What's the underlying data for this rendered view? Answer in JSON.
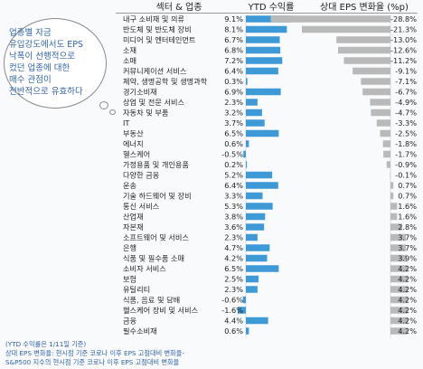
{
  "chart_data": {
    "type": "bar",
    "headers": {
      "sector": "섹터 & 업종",
      "ytd": "YTD 수익률",
      "eps": "상대 EPS 변화율 (%p)"
    },
    "rows": [
      {
        "name": "내구 소비재 및 의류",
        "ytd": 9.1,
        "ytd_label": "9.1%",
        "eps": -28.8,
        "eps_label": "-28.8%"
      },
      {
        "name": "반도체 및 반도체 장비",
        "ytd": 8.1,
        "ytd_label": "8.1%",
        "eps": -21.3,
        "eps_label": "-21.3%"
      },
      {
        "name": "미디어 및 엔터테인먼트",
        "ytd": 6.7,
        "ytd_label": "6.7%",
        "eps": -13.0,
        "eps_label": "-13.0%"
      },
      {
        "name": "소재",
        "ytd": 6.8,
        "ytd_label": "6.8%",
        "eps": -12.6,
        "eps_label": "-12.6%"
      },
      {
        "name": "소매",
        "ytd": 7.2,
        "ytd_label": "7.2%",
        "eps": -11.2,
        "eps_label": "-11.2%"
      },
      {
        "name": "커뮤니케이션 서비스",
        "ytd": 6.4,
        "ytd_label": "6.4%",
        "eps": -9.1,
        "eps_label": "-9.1%"
      },
      {
        "name": "제약, 생명공학 및 생명과학",
        "ytd": 0.3,
        "ytd_label": "0.3%",
        "eps": -7.1,
        "eps_label": "-7.1%"
      },
      {
        "name": "경기소비재",
        "ytd": 6.9,
        "ytd_label": "6.9%",
        "eps": -6.7,
        "eps_label": "-6.7%"
      },
      {
        "name": "상업 및 전문 서비스",
        "ytd": 2.3,
        "ytd_label": "2.3%",
        "eps": -4.9,
        "eps_label": "-4.9%"
      },
      {
        "name": "자동차 및 부품",
        "ytd": 3.2,
        "ytd_label": "3.2%",
        "eps": -4.7,
        "eps_label": "-4.7%"
      },
      {
        "name": "IT",
        "ytd": 3.7,
        "ytd_label": "3.7%",
        "eps": -3.3,
        "eps_label": "-3.3%"
      },
      {
        "name": "부동산",
        "ytd": 6.5,
        "ytd_label": "6.5%",
        "eps": -2.5,
        "eps_label": "-2.5%"
      },
      {
        "name": "에너지",
        "ytd": 0.6,
        "ytd_label": "0.6%",
        "eps": -1.8,
        "eps_label": "-1.8%"
      },
      {
        "name": "헬스케어",
        "ytd": -0.5,
        "ytd_label": "-0.5%",
        "eps": -1.7,
        "eps_label": "-1.7%"
      },
      {
        "name": "가정용품 및 개인용품",
        "ytd": 0.2,
        "ytd_label": "0.2%",
        "eps": -0.9,
        "eps_label": "-0.9%"
      },
      {
        "name": "다양한 금융",
        "ytd": 5.2,
        "ytd_label": "5.2%",
        "eps": -0.1,
        "eps_label": "-0.1%"
      },
      {
        "name": "운송",
        "ytd": 6.4,
        "ytd_label": "6.4%",
        "eps": 0.7,
        "eps_label": "0.7%"
      },
      {
        "name": "기술 하드웨어 및 장비",
        "ytd": 3.3,
        "ytd_label": "3.3%",
        "eps": 0.7,
        "eps_label": "0.7%"
      },
      {
        "name": "통신 서비스",
        "ytd": 5.3,
        "ytd_label": "5.3%",
        "eps": 1.6,
        "eps_label": "1.6%"
      },
      {
        "name": "산업재",
        "ytd": 3.8,
        "ytd_label": "3.8%",
        "eps": 1.6,
        "eps_label": "1.6%"
      },
      {
        "name": "자본재",
        "ytd": 3.6,
        "ytd_label": "3.6%",
        "eps": 2.8,
        "eps_label": "2.8%"
      },
      {
        "name": "소프트웨어 및 서비스",
        "ytd": 2.3,
        "ytd_label": "2.3%",
        "eps": 3.7,
        "eps_label": "3.7%"
      },
      {
        "name": "은행",
        "ytd": 4.7,
        "ytd_label": "4.7%",
        "eps": 3.7,
        "eps_label": "3.7%"
      },
      {
        "name": "식품 및 필수품 소매",
        "ytd": 4.2,
        "ytd_label": "4.2%",
        "eps": 3.9,
        "eps_label": "3.9%"
      },
      {
        "name": "소비자 서비스",
        "ytd": 6.5,
        "ytd_label": "6.5%",
        "eps": 4.2,
        "eps_label": "4.2%"
      },
      {
        "name": "보험",
        "ytd": 2.5,
        "ytd_label": "2.5%",
        "eps": 4.2,
        "eps_label": "4.2%"
      },
      {
        "name": "유틸리티",
        "ytd": 2.3,
        "ytd_label": "2.3%",
        "eps": 4.2,
        "eps_label": "4.2%"
      },
      {
        "name": "식품, 음료 및 담배",
        "ytd": -0.6,
        "ytd_label": "-0.6%",
        "eps": 4.2,
        "eps_label": "4.2%"
      },
      {
        "name": "헬스케어 장비 및 서비스",
        "ytd": -1.6,
        "ytd_label": "-1.6%",
        "eps": 4.2,
        "eps_label": "4.2%"
      },
      {
        "name": "금융",
        "ytd": 4.4,
        "ytd_label": "4.4%",
        "eps": 4.2,
        "eps_label": "4.2%"
      },
      {
        "name": "필수소비재",
        "ytd": 0.6,
        "ytd_label": "0.6%",
        "eps": 4.2,
        "eps_label": "4.2%"
      }
    ]
  },
  "annotation": {
    "lines": [
      "업종별 자금",
      "유입강도에서도 EPS",
      "낙폭이 선행적으로",
      "컸던 업종에 대한",
      "매수 관점이",
      "전반적으로 유효하다"
    ]
  },
  "footnotes": [
    "(YTD 수익률은 1/11일 기준)",
    "상대 EPS 변화율: 현시점 기준 코로나 이후 EPS 고점대비 변화율-",
    "S&P500 지수의 현시점 기준 코로나 이후 EPS 고점대비 변화율"
  ],
  "colors": {
    "ytd_bar": "#3d9ad6",
    "eps_bar": "#b9b9b9"
  }
}
